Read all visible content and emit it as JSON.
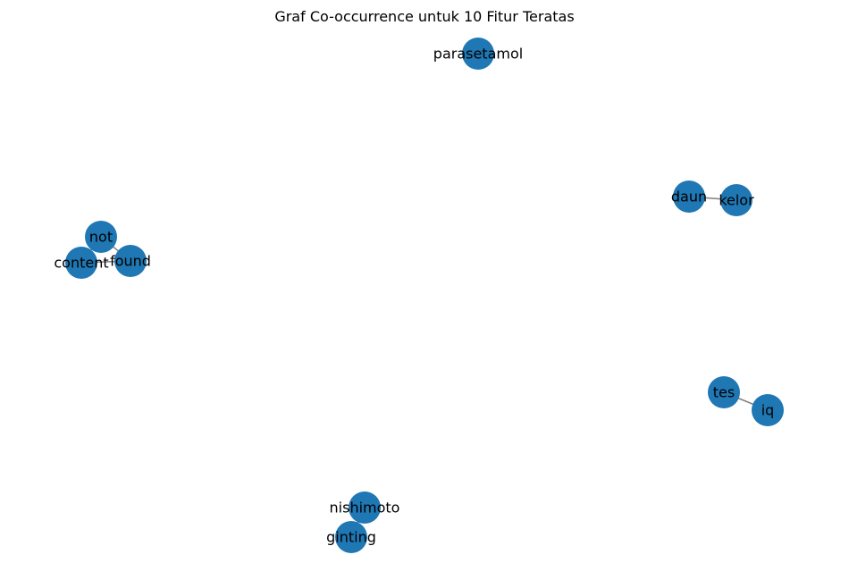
{
  "title": "Graf Co-occurrence untuk 10 Fitur Teratas",
  "colors": {
    "node": "#1f77b4",
    "edge": "#808080",
    "label": "#000000",
    "background": "#ffffff"
  },
  "nodes": [
    {
      "id": "parasetamol",
      "label": "parasetamol"
    },
    {
      "id": "daun",
      "label": "daun"
    },
    {
      "id": "kelor",
      "label": "kelor"
    },
    {
      "id": "not",
      "label": "not"
    },
    {
      "id": "content",
      "label": "content"
    },
    {
      "id": "found",
      "label": "found"
    },
    {
      "id": "tes",
      "label": "tes"
    },
    {
      "id": "iq",
      "label": "iq"
    },
    {
      "id": "nishimoto",
      "label": "nishimoto"
    },
    {
      "id": "ginting",
      "label": "ginting"
    }
  ],
  "edges": [
    {
      "source": "daun",
      "target": "kelor"
    },
    {
      "source": "not",
      "target": "content"
    },
    {
      "source": "not",
      "target": "found"
    },
    {
      "source": "content",
      "target": "found"
    },
    {
      "source": "tes",
      "target": "iq"
    },
    {
      "source": "nishimoto",
      "target": "ginting"
    }
  ]
}
